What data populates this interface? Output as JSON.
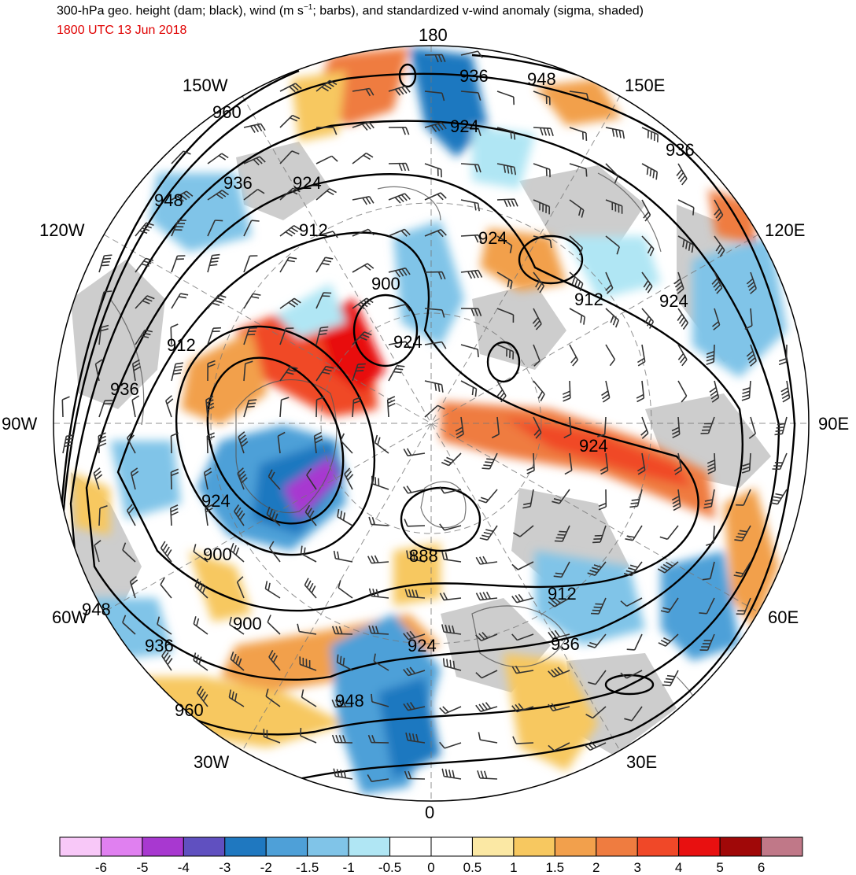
{
  "header": {
    "title_main": "300-hPa geo. height (dam; black), wind (m s",
    "title_sup": "−1",
    "title_tail": "; barbs), and standardized v-wind anomaly (sigma, shaded)",
    "valid_time": "1800 UTC 13 Jun 2018"
  },
  "map": {
    "projection": "north-polar-stereographic",
    "longitude_labels": {
      "lon_0": "0",
      "lon_180": "180",
      "lon_90w": "90W",
      "lon_90e": "90E",
      "lon_150w": "150W",
      "lon_150e": "150E",
      "lon_120w": "120W",
      "lon_120e": "120E",
      "lon_60w": "60W",
      "lon_60e": "60E",
      "lon_30w": "30W",
      "lon_30e": "30E"
    },
    "contour_labels": [
      "960",
      "948",
      "936",
      "924",
      "912",
      "900",
      "912",
      "936",
      "924",
      "900",
      "924",
      "900",
      "948",
      "936",
      "960",
      "948",
      "924",
      "888",
      "912",
      "936",
      "924",
      "912",
      "924",
      "936",
      "948",
      "936"
    ],
    "colors": {
      "contour": "#000000",
      "barbs": "#333333",
      "land_gray": "#c8c8c8",
      "coast": "#555555"
    }
  },
  "colorbar": {
    "labels": [
      "-6",
      "-5",
      "-4",
      "-3",
      "-2",
      "-1.5",
      "-1",
      "-0.5",
      "0",
      "0.5",
      "1",
      "1.5",
      "2",
      "3",
      "4",
      "5",
      "6"
    ],
    "colors": [
      "#f8c8f8",
      "#e080f0",
      "#a838d0",
      "#6050c0",
      "#1f78c0",
      "#4ea0d8",
      "#80c4e8",
      "#b0e6f4",
      "#ffffff",
      "#ffffff",
      "#fbe8a4",
      "#f7c860",
      "#f2a04c",
      "#ef7c40",
      "#f04828",
      "#e81010",
      "#a00808",
      "#c07888"
    ]
  }
}
